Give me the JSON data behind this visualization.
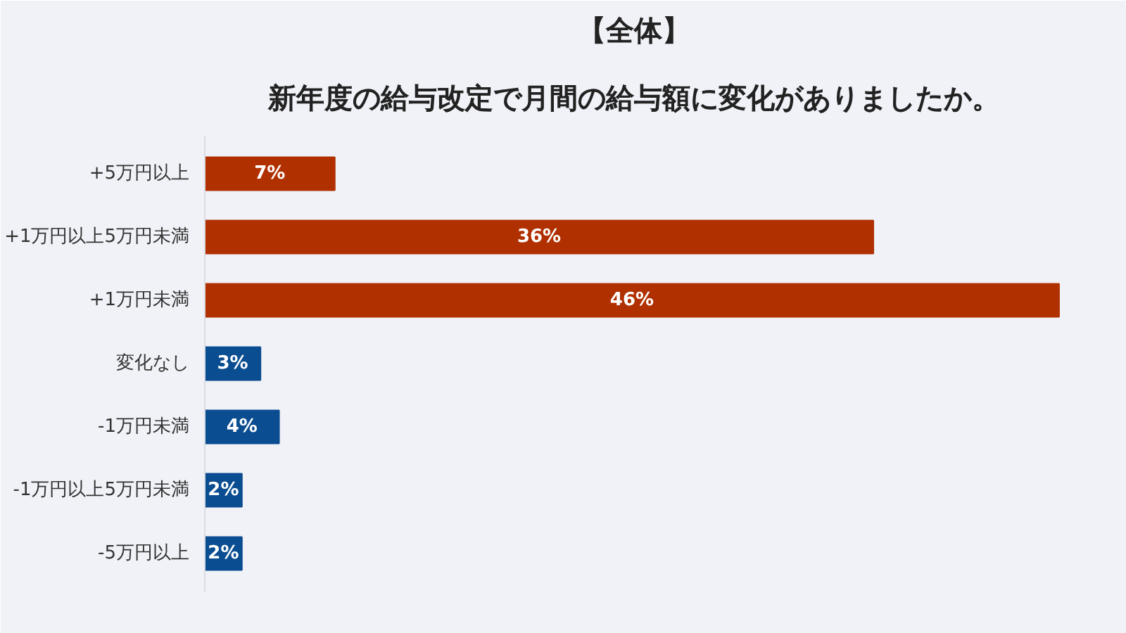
{
  "chart_data": {
    "type": "bar",
    "orientation": "horizontal",
    "title": "【全体】",
    "subtitle": "新年度の給与改定で月間の給与額に変化がありましたか。",
    "categories": [
      "+5万円以上",
      "+1万円以上5万円未満",
      "+1万円未満",
      "変化なし",
      "-1万円未満",
      "-1万円以上5万円未満",
      "-5万円以上"
    ],
    "values": [
      7,
      36,
      46,
      3,
      4,
      2,
      2
    ],
    "colors": [
      "#b03000",
      "#b03000",
      "#b03000",
      "#0b4d91",
      "#0b4d91",
      "#0b4d91",
      "#0b4d91"
    ],
    "value_labels": [
      "7%",
      "36%",
      "46%",
      "3%",
      "4%",
      "2%",
      "2%"
    ],
    "grid": false
  }
}
